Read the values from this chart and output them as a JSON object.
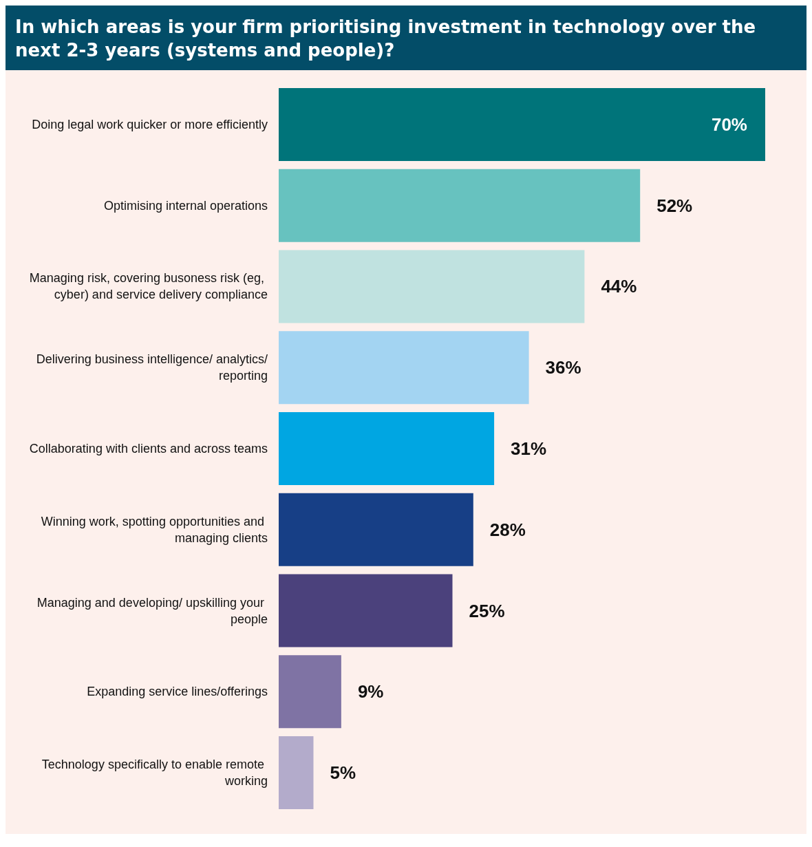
{
  "chart_data": {
    "type": "bar",
    "orientation": "horizontal",
    "title": "In which areas is your firm prioritising investment in technology over the next 2-3 years (systems and people)?",
    "categories": [
      "Doing legal work quicker or more efficiently",
      "Optimising internal operations",
      "Managing risk, covering busoness risk (eg, cyber) and service delivery compliance",
      "Delivering business intelligence/ analytics/reporting",
      "Collaborating with clients and across teams",
      "Winning work, spotting opportunities and managing clients",
      "Managing and developing/ upskilling your people",
      "Expanding service lines/offerings",
      "Technology specifically to enable remote working"
    ],
    "values": [
      70,
      52,
      44,
      36,
      31,
      28,
      25,
      9,
      5
    ],
    "value_labels": [
      "70%",
      "52%",
      "44%",
      "36%",
      "31%",
      "28%",
      "25%",
      "9%",
      "5%"
    ],
    "colors": [
      "#00747a",
      "#67c2bf",
      "#c0e2e0",
      "#a3d4f2",
      "#00a6e2",
      "#173f86",
      "#4b417c",
      "#7f73a4",
      "#b3abcb"
    ],
    "grid": false,
    "tick_labels": "y"
  }
}
